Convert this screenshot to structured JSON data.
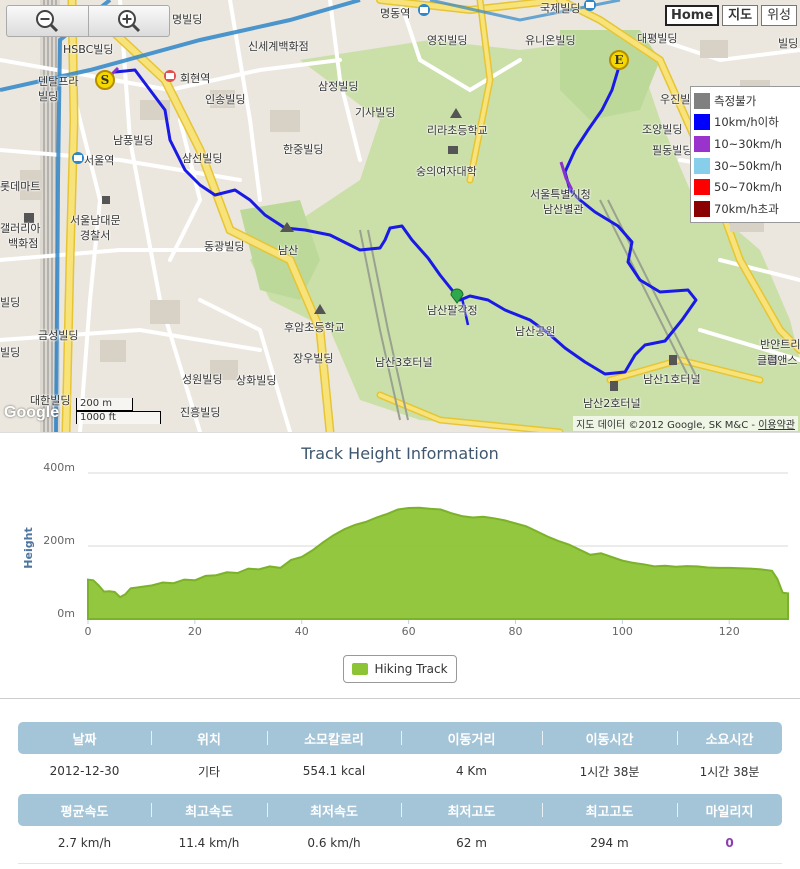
{
  "map": {
    "labels": {
      "myungbuilding": "명빌딩",
      "hsbc": "HSBC빌딩",
      "shinsegae": "신세계백화점",
      "myeongdong": "명동역",
      "kukje": "국제빌딩",
      "youngjin": "영진빌딩",
      "unionbuilding": "유니온빌딩",
      "daepyung": "대평빌딩",
      "hoehyun": "회현역",
      "inseong": "인송빌딩",
      "samjeong": "삼정빌딩",
      "denta1": "덴탈프라",
      "denta2": "빌딩",
      "gisa": "기사빌딩",
      "woojin": "우진빌딩",
      "lira": "리라초등학교",
      "sookmyung": "숭의여자대학",
      "namyoung": "남풍빌딩",
      "seoulstation": "서울역",
      "samsun": "삼선빌딩",
      "hanjung": "한중빌딩",
      "choyang": "조양빌딩",
      "pildong": "필동빌딩",
      "lotte": "롯데마트",
      "cityhall1": "서울특별시청",
      "cityhall2": "남산별관",
      "gallery1": "갤러리아",
      "gallery2": "백화점",
      "namdaemun1": "서울남대문",
      "namdaemun2": "경찰서",
      "namsan": "남산",
      "donggwang": "동광빌딩",
      "palgakjeong": "남산팔각정",
      "namsanpark": "남산공원",
      "huam": "후암초등학교",
      "geumseong": "금성빌딩",
      "jangwoo": "장우빌딩",
      "tunnel3": "남산3호터널",
      "tunnel1": "남산1호터널",
      "tunnel2": "남산2호터널",
      "seongwon": "성원빌딩",
      "sanghwa": "상화빌딩",
      "jinheung": "진흥빌딩",
      "daehan": "대한빌딩",
      "banyan1": "반얀트리",
      "banyan2": "클럽앤스",
      "bil1": "빌딩",
      "bil2": "빌딩",
      "bil3": "빌딩"
    },
    "markers": {
      "start": "S",
      "end": "E"
    },
    "map_type": {
      "home": "Home",
      "map": "지도",
      "satellite": "위성"
    },
    "zoom": {
      "out_icon": "zoom-out-icon",
      "in_icon": "zoom-in-icon"
    },
    "speed_legend": [
      {
        "label": "측정불가",
        "color": "#808080"
      },
      {
        "label": "10km/h이하",
        "color": "#0000ff"
      },
      {
        "label": "10~30km/h",
        "color": "#9933cc"
      },
      {
        "label": "30~50km/h",
        "color": "#87ceeb"
      },
      {
        "label": "50~70km/h",
        "color": "#ff0000"
      },
      {
        "label": "70km/h초과",
        "color": "#8b0000"
      }
    ],
    "scale": {
      "metric": "200 m",
      "imperial": "1000 ft"
    },
    "google_logo": "Google",
    "attribution": "지도 데이터 ©2012 Google, SK M&C -",
    "terms": "이용약관"
  },
  "chart_data": {
    "type": "area",
    "title": "Track Height Information",
    "ylabel": "Height",
    "xlabel": "",
    "xlim": [
      0,
      131
    ],
    "ylim": [
      0,
      400
    ],
    "x_ticks": [
      0,
      20,
      40,
      60,
      80,
      100,
      120
    ],
    "y_ticks": [
      {
        "value": 0,
        "label": "0m"
      },
      {
        "value": 200,
        "label": "200m"
      },
      {
        "value": 400,
        "label": "400m"
      }
    ],
    "grid": true,
    "legend_position": "bottom-center",
    "series": [
      {
        "name": "Hiking Track",
        "color": "#8cc435",
        "x": [
          0,
          1,
          2,
          3,
          4,
          5,
          6,
          7,
          8,
          9,
          10,
          12,
          14,
          16,
          18,
          20,
          22,
          24,
          26,
          28,
          30,
          32,
          34,
          36,
          38,
          40,
          42,
          44,
          46,
          48,
          50,
          52,
          54,
          56,
          58,
          60,
          62,
          64,
          66,
          68,
          70,
          72,
          74,
          76,
          78,
          80,
          82,
          84,
          86,
          88,
          90,
          92,
          94,
          96,
          98,
          100,
          102,
          104,
          106,
          108,
          110,
          112,
          114,
          116,
          118,
          120,
          122,
          124,
          126,
          128,
          129,
          130,
          131
        ],
        "values": [
          108,
          106,
          92,
          75,
          76,
          74,
          60,
          68,
          84,
          86,
          88,
          92,
          100,
          98,
          108,
          106,
          118,
          120,
          128,
          126,
          138,
          136,
          144,
          140,
          162,
          170,
          188,
          210,
          230,
          246,
          258,
          266,
          278,
          288,
          300,
          304,
          305,
          302,
          300,
          290,
          282,
          278,
          280,
          276,
          270,
          262,
          254,
          240,
          226,
          214,
          204,
          190,
          176,
          180,
          170,
          160,
          154,
          150,
          144,
          146,
          143,
          145,
          144,
          141,
          140,
          140,
          139,
          138,
          136,
          132,
          110,
          72,
          70
        ]
      }
    ]
  },
  "stats": {
    "row1_headers": [
      "날짜",
      "위치",
      "소모칼로리",
      "이동거리",
      "이동시간",
      "소요시간"
    ],
    "row1_values": [
      "2012-12-30",
      "기타",
      "554.1 kcal",
      "4 Km",
      "1시간 38분",
      "1시간 38분"
    ],
    "row2_headers": [
      "평균속도",
      "최고속도",
      "최저속도",
      "최저고도",
      "최고고도",
      "마일리지"
    ],
    "row2_values": [
      "2.7 km/h",
      "11.4 km/h",
      "0.6 km/h",
      "62 m",
      "294 m",
      "0"
    ]
  }
}
